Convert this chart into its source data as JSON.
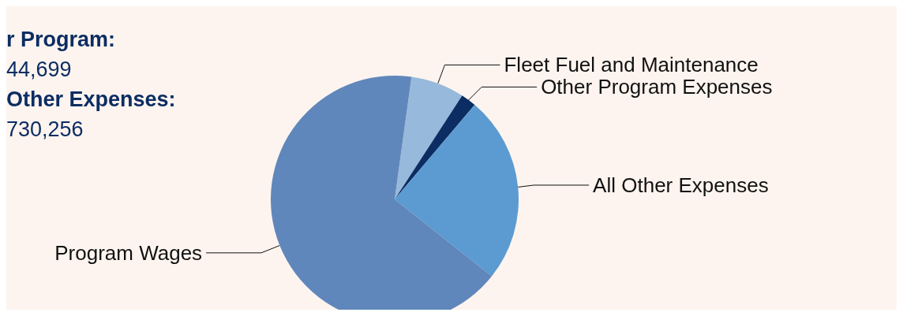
{
  "chart_data": {
    "type": "pie",
    "categories": [
      "Fleet Fuel and Maintenance",
      "Other Program Expenses",
      "All Other Expenses",
      "Program Wages"
    ],
    "values": [
      7.0,
      2.0,
      24.5,
      66.5
    ],
    "colors": [
      "#97b9dc",
      "#0c2d63",
      "#5b9bd1",
      "#6087bb"
    ],
    "annotations": [
      "r Program:",
      "44,699",
      "Other Expenses:",
      "730,256"
    ],
    "legend": false
  }
}
